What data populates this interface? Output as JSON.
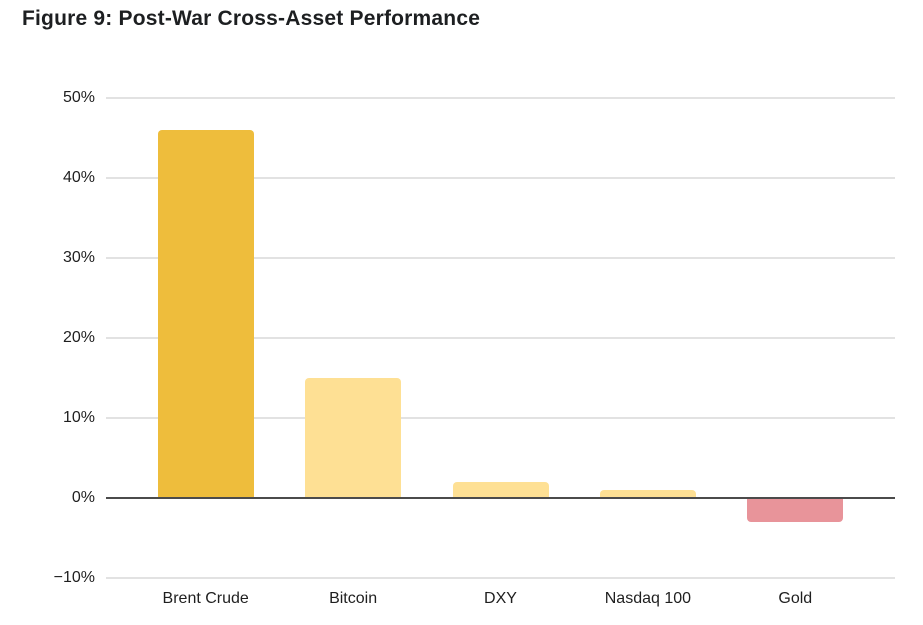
{
  "figure": {
    "title": "Figure 9: Post-War Cross-Asset Performance",
    "title_color": "#1d1f21",
    "background": "#ffffff"
  },
  "chart_data": {
    "type": "bar",
    "title": "Figure 9: Post-War Cross-Asset Performance",
    "categories": [
      "Brent Crude",
      "Bitcoin",
      "DXY",
      "Nasdaq 100",
      "Gold"
    ],
    "values": [
      46,
      15,
      2,
      1,
      -3
    ],
    "bar_colors": [
      "#EEBD3C",
      "#FEE094",
      "#FEE094",
      "#FEE094",
      "#E8949A"
    ],
    "xlabel": "",
    "ylabel": "",
    "ylim": [
      -10,
      50
    ],
    "yticks": [
      {
        "value": 50,
        "label": "50%"
      },
      {
        "value": 40,
        "label": "40%"
      },
      {
        "value": 30,
        "label": "30%"
      },
      {
        "value": 20,
        "label": "20%"
      },
      {
        "value": 10,
        "label": "10%"
      },
      {
        "value": 0,
        "label": "0%"
      },
      {
        "value": -10,
        "label": "−10%"
      }
    ],
    "grid": "horizontal",
    "legend": "none",
    "grid_color": "#e2e2e2",
    "zero_line_color": "#4b4b4b"
  }
}
